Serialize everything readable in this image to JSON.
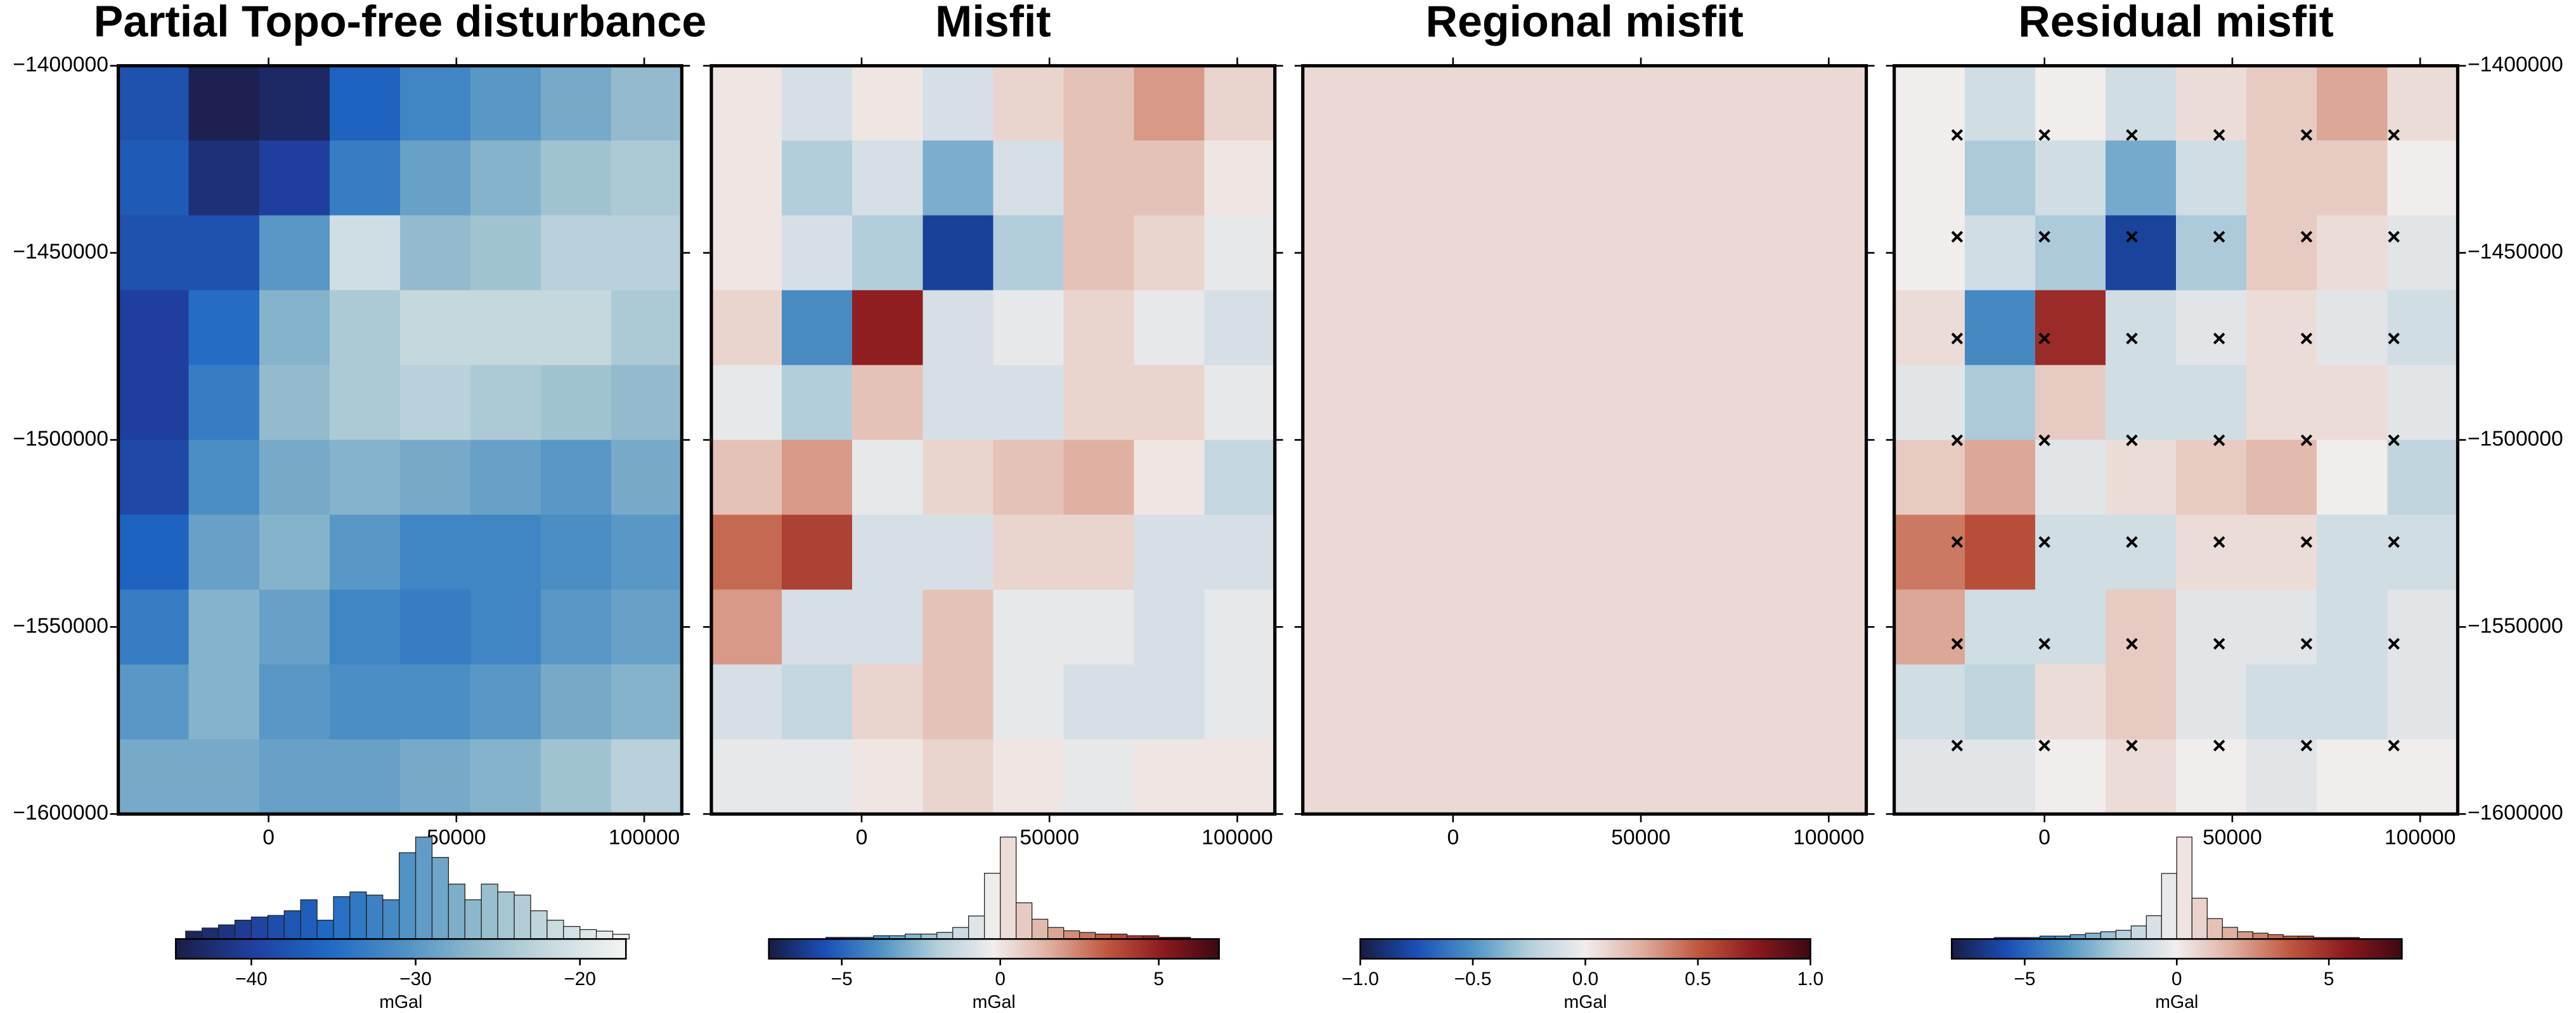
{
  "chart_data": [
    {
      "type": "heatmap",
      "title": "Partial Topo-free disturbance",
      "xlim": [
        -40000,
        110000
      ],
      "xticks": [
        0,
        50000,
        100000
      ],
      "ylim": [
        -1600000,
        -1400000
      ],
      "yticks": [
        {
          "value": -1600000,
          "label": "−1600000"
        },
        {
          "value": -1550000,
          "label": "−1550000"
        },
        {
          "value": -1500000,
          "label": "−1500000"
        },
        {
          "value": -1450000,
          "label": "−1450000"
        },
        {
          "value": -1400000,
          "label": "−1400000"
        }
      ],
      "ytick_side": "left",
      "colormap": [
        "#1b1d46",
        "#1f3f9e",
        "#1f68c4",
        "#4c8fc4",
        "#8fb9cc",
        "#c8dadf",
        "#f4f4f2"
      ],
      "z": [
        [
          -38,
          -44,
          -43,
          -36,
          -32,
          -30,
          -28,
          -26
        ],
        [
          -37,
          -42,
          -40,
          -33,
          -29,
          -27,
          -25,
          -24
        ],
        [
          -38,
          -38,
          -30,
          -21,
          -26,
          -25,
          -23,
          -23
        ],
        [
          -40,
          -35,
          -27,
          -24,
          -22,
          -22,
          -22,
          -24
        ],
        [
          -40,
          -33,
          -26,
          -24,
          -23,
          -24,
          -25,
          -26
        ],
        [
          -39,
          -31,
          -28,
          -27,
          -28,
          -29,
          -30,
          -28
        ],
        [
          -36,
          -29,
          -27,
          -30,
          -32,
          -32,
          -31,
          -30
        ],
        [
          -33,
          -27,
          -29,
          -32,
          -33,
          -32,
          -30,
          -29
        ],
        [
          -30,
          -27,
          -30,
          -31,
          -31,
          -30,
          -28,
          -27
        ],
        [
          -28,
          -28,
          -29,
          -29,
          -28,
          -27,
          -25,
          -23
        ]
      ],
      "colorbar": {
        "label": "mGal",
        "lim": [
          -44.6,
          -17.2
        ],
        "ticks": [
          {
            "value": -40,
            "label": "−40"
          },
          {
            "value": -30,
            "label": "−30"
          },
          {
            "value": -20,
            "label": "−20"
          }
        ]
      },
      "histogram": {
        "bins": [
          -44,
          -43,
          -42,
          -41,
          -40,
          -39,
          -38,
          -37,
          -36,
          -35,
          -34,
          -33,
          -32,
          -31,
          -30,
          -29,
          -28,
          -27,
          -26,
          -25,
          -24,
          -23,
          -22,
          -21,
          -20,
          -19,
          -18,
          -17
        ],
        "counts": [
          5,
          7,
          9,
          12,
          14,
          15,
          18,
          25,
          12,
          27,
          30,
          28,
          25,
          55,
          65,
          52,
          35,
          25,
          35,
          30,
          28,
          18,
          12,
          8,
          6,
          5,
          3
        ]
      }
    },
    {
      "type": "heatmap",
      "title": "Misfit",
      "xlim": [
        -40000,
        110000
      ],
      "xticks": [
        0,
        50000,
        100000
      ],
      "ylim": [
        -1600000,
        -1400000
      ],
      "yticks": [
        -1600000,
        -1550000,
        -1500000,
        -1450000,
        -1400000
      ],
      "colormap": [
        "#181c43",
        "#1a4fb8",
        "#4f94c4",
        "#b4cfdb",
        "#f1eded",
        "#dfae9f",
        "#c0583f",
        "#8c1a1f",
        "#3c0912"
      ],
      "z": [
        [
          0,
          -1,
          0,
          -1,
          0.5,
          1,
          2,
          0.5
        ],
        [
          0,
          -2,
          -1,
          -3,
          -1,
          1,
          1,
          0
        ],
        [
          0,
          -1,
          -2,
          -6,
          -2,
          1,
          0.5,
          -0.5
        ],
        [
          0.5,
          -4,
          5,
          -1,
          -0.5,
          0.5,
          -0.5,
          -1
        ],
        [
          -0.5,
          -2,
          1,
          -1,
          -1,
          0.5,
          0.5,
          -0.5
        ],
        [
          1,
          2,
          -0.5,
          0.5,
          1,
          1.5,
          0,
          -1.5
        ],
        [
          3,
          4,
          -1,
          -1,
          0.5,
          0.5,
          -1,
          -1
        ],
        [
          2,
          -1,
          -1,
          1,
          -0.5,
          -0.5,
          -1,
          -0.5
        ],
        [
          -1,
          -1.5,
          0.5,
          1,
          -0.5,
          -1,
          -1,
          -0.5
        ],
        [
          -0.5,
          -0.5,
          0,
          0.5,
          0,
          -0.5,
          0,
          0
        ]
      ],
      "colorbar": {
        "label": "mGal",
        "lim": [
          -7.3,
          6.9
        ],
        "ticks": [
          {
            "value": -5,
            "label": "−5"
          },
          0,
          5
        ]
      },
      "histogram": {
        "bins": [
          -7,
          -6.5,
          -6,
          -5.5,
          -5,
          -4.5,
          -4,
          -3.5,
          -3,
          -2.5,
          -2,
          -1.5,
          -1,
          -0.5,
          0,
          0.5,
          1,
          1.5,
          2,
          2.5,
          3,
          3.5,
          4,
          4.5,
          5,
          5.5,
          6,
          6.5,
          7
        ],
        "counts": [
          0,
          0,
          0,
          1,
          1,
          1,
          2,
          2,
          3,
          3,
          4,
          7,
          14,
          40,
          62,
          22,
          12,
          7,
          5,
          4,
          3,
          3,
          2,
          2,
          1,
          1,
          0,
          0
        ]
      }
    },
    {
      "type": "heatmap",
      "title": "Regional misfit",
      "xlim": [
        -40000,
        110000
      ],
      "xticks": [
        0,
        50000,
        100000
      ],
      "ylim": [
        -1600000,
        -1400000
      ],
      "yticks": [
        -1600000,
        -1550000,
        -1500000,
        -1450000,
        -1400000
      ],
      "colormap": [
        "#181c43",
        "#1a4fb8",
        "#4f94c4",
        "#b4cfdb",
        "#f1eded",
        "#dfae9f",
        "#c0583f",
        "#8c1a1f",
        "#3c0912"
      ],
      "z": [
        [
          0.08
        ]
      ],
      "colorbar": {
        "label": "mGal",
        "lim": [
          -1,
          1
        ],
        "ticks": [
          {
            "value": -1,
            "label": "−1.0"
          },
          {
            "value": -0.5,
            "label": "−0.5"
          },
          {
            "value": 0,
            "label": "0.0"
          },
          0.5,
          {
            "value": 1,
            "label": "1.0"
          }
        ]
      }
    },
    {
      "type": "heatmap",
      "title": "Residual misfit",
      "xlim": [
        -40000,
        110000
      ],
      "xticks": [
        0,
        50000,
        100000
      ],
      "ylim": [
        -1600000,
        -1400000
      ],
      "yticks": [
        {
          "value": -1600000,
          "label": "−1600000"
        },
        {
          "value": -1550000,
          "label": "−1550000"
        },
        {
          "value": -1500000,
          "label": "−1500000"
        },
        {
          "value": -1450000,
          "label": "−1450000"
        },
        {
          "value": -1400000,
          "label": "−1400000"
        }
      ],
      "ytick_side": "right",
      "colormap": [
        "#181c43",
        "#1a4fb8",
        "#4f94c4",
        "#b4cfdb",
        "#f1eded",
        "#dfae9f",
        "#c0583f",
        "#8c1a1f",
        "#3c0912"
      ],
      "z": [
        [
          0,
          -1,
          0,
          -1,
          0.5,
          1,
          2,
          0.5
        ],
        [
          0,
          -2,
          -1,
          -3,
          -1,
          1,
          1,
          0
        ],
        [
          0,
          -1,
          -2,
          -6,
          -2,
          1,
          0.5,
          -0.5
        ],
        [
          0.5,
          -4,
          5,
          -1,
          -0.5,
          0.5,
          -0.5,
          -1
        ],
        [
          -0.5,
          -2,
          1,
          -1,
          -1,
          0.5,
          0.5,
          -0.5
        ],
        [
          1,
          2,
          -0.5,
          0.5,
          1,
          1.5,
          0,
          -1.5
        ],
        [
          3,
          4,
          -1,
          -1,
          0.5,
          0.5,
          -1,
          -1
        ],
        [
          2,
          -1,
          -1,
          1,
          -0.5,
          -0.5,
          -1,
          -0.5
        ],
        [
          -1,
          -1.5,
          0.5,
          1,
          -0.5,
          -1,
          -1,
          -0.5
        ],
        [
          -0.5,
          -0.5,
          0,
          0.5,
          0,
          -0.5,
          0,
          0
        ]
      ],
      "points": {
        "color": "#000000",
        "x": [
          -23250,
          0,
          23250,
          46500,
          69750,
          93000,
          -23250,
          0,
          23250,
          46500,
          69750,
          93000,
          -23250,
          0,
          23250,
          46500,
          69750,
          93000,
          -23250,
          0,
          23250,
          46500,
          69750,
          93000,
          -23250,
          0,
          23250,
          46500,
          69750,
          93000,
          -23250,
          0,
          23250,
          46500,
          69750,
          93000,
          -23250,
          0,
          23250,
          46500,
          69750,
          93000
        ],
        "y": [
          -1418500,
          -1418500,
          -1418500,
          -1418500,
          -1418500,
          -1418500,
          -1445700,
          -1445700,
          -1445700,
          -1445700,
          -1445700,
          -1445700,
          -1472900,
          -1472900,
          -1472900,
          -1472900,
          -1472900,
          -1472900,
          -1500100,
          -1500100,
          -1500100,
          -1500100,
          -1500100,
          -1500100,
          -1527300,
          -1527300,
          -1527300,
          -1527300,
          -1527300,
          -1527300,
          -1554500,
          -1554500,
          -1554500,
          -1554500,
          -1554500,
          -1554500,
          -1581700,
          -1581700,
          -1581700,
          -1581700,
          -1581700,
          -1581700
        ]
      },
      "colorbar": {
        "label": "mGal",
        "lim": [
          -7.4,
          7.4
        ],
        "ticks": [
          {
            "value": -5,
            "label": "−5"
          },
          0,
          5
        ]
      },
      "histogram": {
        "bins": [
          -7,
          -6.5,
          -6,
          -5.5,
          -5,
          -4.5,
          -4,
          -3.5,
          -3,
          -2.5,
          -2,
          -1.5,
          -1,
          -0.5,
          0,
          0.5,
          1,
          1.5,
          2,
          2.5,
          3,
          3.5,
          4,
          4.5,
          5,
          5.5,
          6,
          6.5,
          7
        ],
        "counts": [
          0,
          0,
          1,
          1,
          1,
          2,
          2,
          3,
          4,
          5,
          6,
          9,
          16,
          45,
          70,
          28,
          14,
          8,
          5,
          4,
          3,
          2,
          2,
          1,
          1,
          1,
          0,
          0
        ]
      }
    }
  ]
}
